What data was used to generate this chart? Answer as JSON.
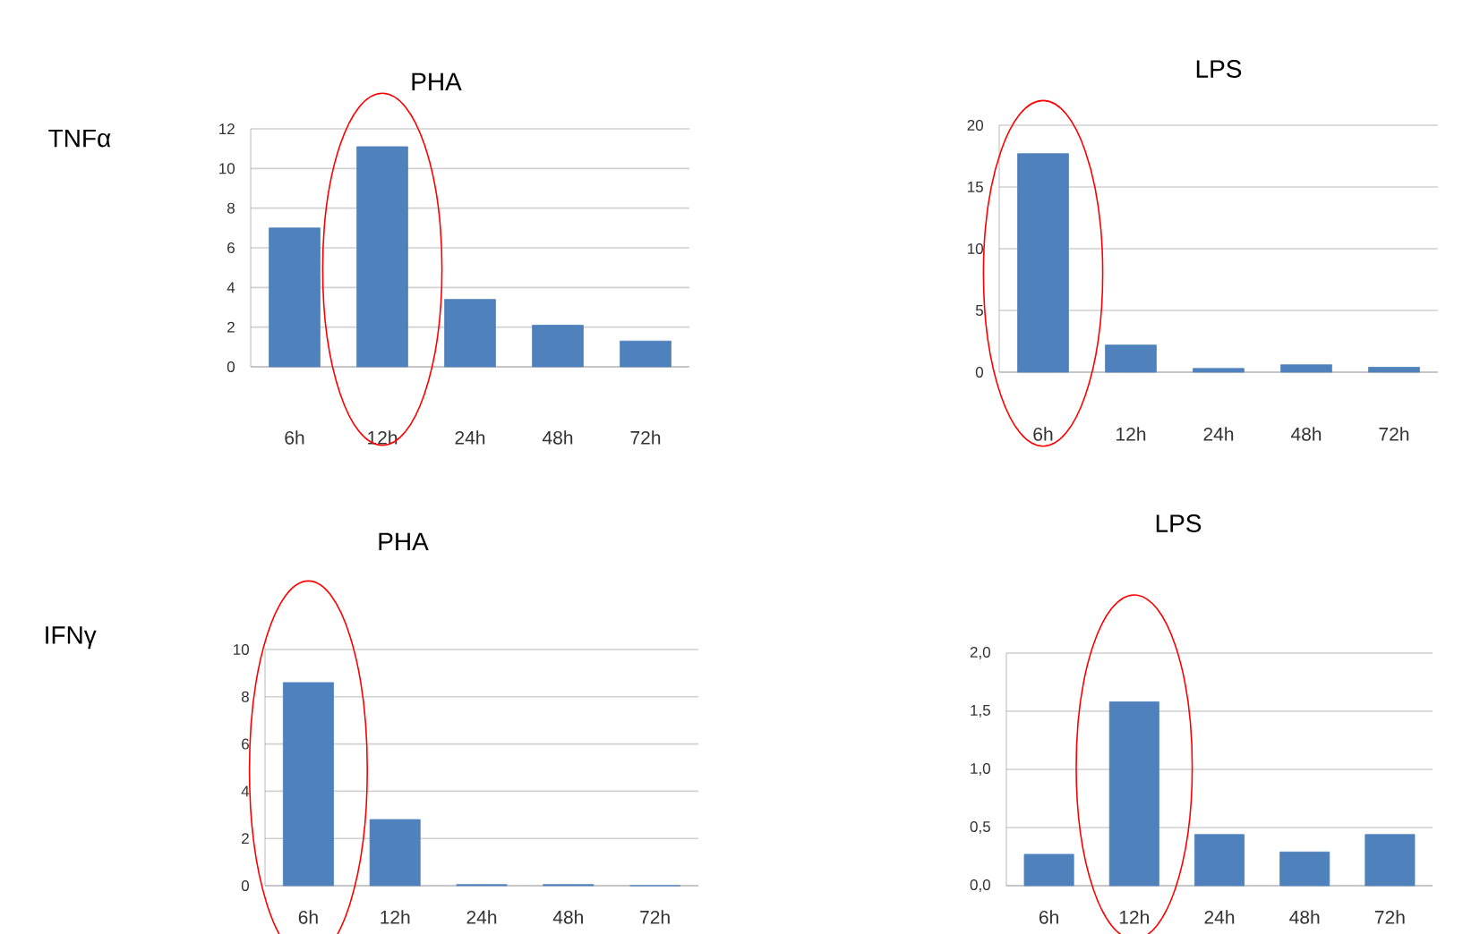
{
  "chart_data": [
    {
      "type": "bar",
      "title": "PHA",
      "ylabel": "TNFα",
      "categories": [
        "6h",
        "12h",
        "24h",
        "48h",
        "72h"
      ],
      "values": [
        7.0,
        11.1,
        3.4,
        2.1,
        1.3
      ],
      "color": "#4f81bd",
      "ylim": [
        0,
        12
      ],
      "yticks": [
        0,
        2,
        4,
        6,
        8,
        10,
        12
      ],
      "grid": "y"
    },
    {
      "type": "bar",
      "title": "LPS",
      "categories": [
        "6h",
        "12h",
        "24h",
        "48h",
        "72h"
      ],
      "values": [
        17.7,
        2.2,
        0.3,
        0.6,
        0.4
      ],
      "color": "#4f81bd",
      "ylim": [
        0,
        20
      ],
      "yticks": [
        0,
        5,
        10,
        15,
        20
      ],
      "grid": "y"
    },
    {
      "type": "bar",
      "title": "PHA",
      "ylabel": "IFNγ",
      "categories": [
        "6h",
        "12h",
        "24h",
        "48h",
        "72h"
      ],
      "values": [
        8.6,
        2.8,
        0.05,
        0.05,
        0
      ],
      "color": "#4f81bd",
      "ylim": [
        0,
        10
      ],
      "yticks": [
        0,
        2,
        4,
        6,
        8,
        10
      ],
      "grid": "y"
    },
    {
      "type": "bar",
      "title": "LPS",
      "categories": [
        "6h",
        "12h",
        "24h",
        "48h",
        "72h"
      ],
      "values": [
        0.27,
        1.58,
        0.44,
        0.29,
        0.44
      ],
      "color": "#4f81bd",
      "ylim": [
        0,
        2
      ],
      "yticks": [
        {
          "value": 0,
          "label": "0,0"
        },
        {
          "value": 0.5,
          "label": "0,5"
        },
        {
          "value": 1,
          "label": "1,0"
        },
        {
          "value": 1.5,
          "label": "1,5"
        },
        {
          "value": 2,
          "label": "2,0"
        }
      ],
      "grid": "y"
    }
  ]
}
